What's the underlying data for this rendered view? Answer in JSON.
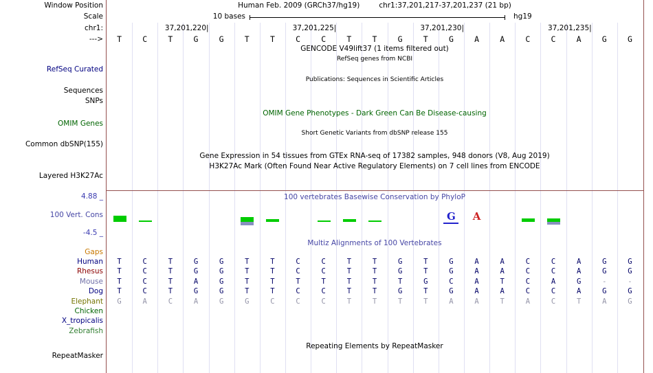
{
  "colors": {
    "guide": "#dfdff2",
    "border": "#94504e",
    "title_blue": "#4646a5",
    "value_blue": "#3a3ab0",
    "omim_green": "#006400",
    "cons_pos": "#00cc00",
    "cons_neg": "#8890c0",
    "base_dark": "#000066",
    "base_gray": "#9494a8"
  },
  "header": {
    "left_label": "Window Position",
    "assembly": "Human Feb. 2009 (GRCh37/hg19)",
    "position": "chr1:37,201,217-37,201,237 (21 bp)"
  },
  "scale": {
    "left_label": "Scale",
    "bar_label": "10 bases",
    "genome": "hg19"
  },
  "ruler": {
    "left_label": "chr1:",
    "ticks": [
      {
        "text": "37,201,220",
        "col": 4
      },
      {
        "text": "37,201,225",
        "col": 9
      },
      {
        "text": "37,201,230",
        "col": 14
      },
      {
        "text": "37,201,235",
        "col": 19
      }
    ]
  },
  "sequence": {
    "left_label": "--->",
    "bases": [
      "T",
      "C",
      "T",
      "G",
      "G",
      "T",
      "T",
      "C",
      "C",
      "T",
      "T",
      "G",
      "T",
      "G",
      "A",
      "A",
      "C",
      "C",
      "A",
      "G",
      "G"
    ]
  },
  "tracks": {
    "gencode_title": "GENCODE V49lift37 (1 items filtered out)",
    "refseq_subtitle": "RefSeq genes from NCBI",
    "refseq_label": "RefSeq Curated",
    "publications_title": "Publications: Sequences in Scientific Articles",
    "sequences_label": "Sequences",
    "snps_label": "SNPs",
    "omim_title": "OMIM Gene Phenotypes - Dark Green Can Be Disease-causing",
    "omim_label": "OMIM Genes",
    "dbsnp_title": "Short Genetic Variants from dbSNP release 155",
    "dbsnp_label": "Common dbSNP(155)",
    "gtex_title": "Gene Expression in 54 tissues from GTEx RNA-seq of 17382 samples, 948 donors (V8, Aug 2019)",
    "h3k27ac_title": "H3K27Ac Mark (Often Found Near Active Regulatory Elements) on 7 cell lines from ENCODE",
    "h3k27ac_label": "Layered H3K27Ac",
    "repeat_title": "Repeating Elements by RepeatMasker",
    "repeat_label": "RepeatMasker"
  },
  "conservation": {
    "title": "100 vertebrates Basewise Conservation by PhyloP",
    "label": "100 Vert. Cons",
    "max_label": "4.88 _",
    "min_label": "-4.5 _",
    "bars": [
      {
        "col": 1,
        "up": 9,
        "down": 0
      },
      {
        "col": 2,
        "up": 2,
        "down": 0
      },
      {
        "col": 6,
        "up": 7,
        "down": 5
      },
      {
        "col": 7,
        "up": 4,
        "down": 0
      },
      {
        "col": 9,
        "up": 2,
        "down": 0
      },
      {
        "col": 10,
        "up": 4,
        "down": 0
      },
      {
        "col": 11,
        "up": 2,
        "down": 0
      },
      {
        "col": 17,
        "up": 5,
        "down": 0
      },
      {
        "col": 18,
        "up": 5,
        "down": 4
      }
    ],
    "letters": [
      {
        "col": 14,
        "letter": "G",
        "color": "#2222cc",
        "underline": true
      },
      {
        "col": 15,
        "letter": "A",
        "color": "#cc2222",
        "underline": false
      }
    ]
  },
  "multiz": {
    "title": "Multiz Alignments of 100 Vertebrates",
    "gaps_label": "Gaps",
    "species": [
      {
        "name": "Human",
        "color": "#000080",
        "bases": "TCTGGTTCCTTGTGAACCAGG",
        "grays": []
      },
      {
        "name": "Rhesus",
        "color": "#8b0000",
        "bases": "TCTGGTTCCTTGTGAACCAGG",
        "grays": []
      },
      {
        "name": "Mouse",
        "color": "#7070a8",
        "bases": "TCTAGTTTTTTTGCATCAG--",
        "grays": [
          20,
          21
        ]
      },
      {
        "name": "Dog",
        "color": "#000080",
        "bases": "TCTGGTTCCTTGTGAACCAGG",
        "grays": []
      },
      {
        "name": "Elephant",
        "color": "#737300",
        "bases": "GACAGGCCCTTTTAATACTAG",
        "grays": "all"
      },
      {
        "name": "Chicken",
        "color": "#006400",
        "bases": "",
        "grays": []
      },
      {
        "name": "X_tropicalis",
        "color": "#000080",
        "bases": "",
        "grays": []
      },
      {
        "name": "Zebrafish",
        "color": "#338033",
        "bases": "",
        "grays": []
      }
    ]
  }
}
